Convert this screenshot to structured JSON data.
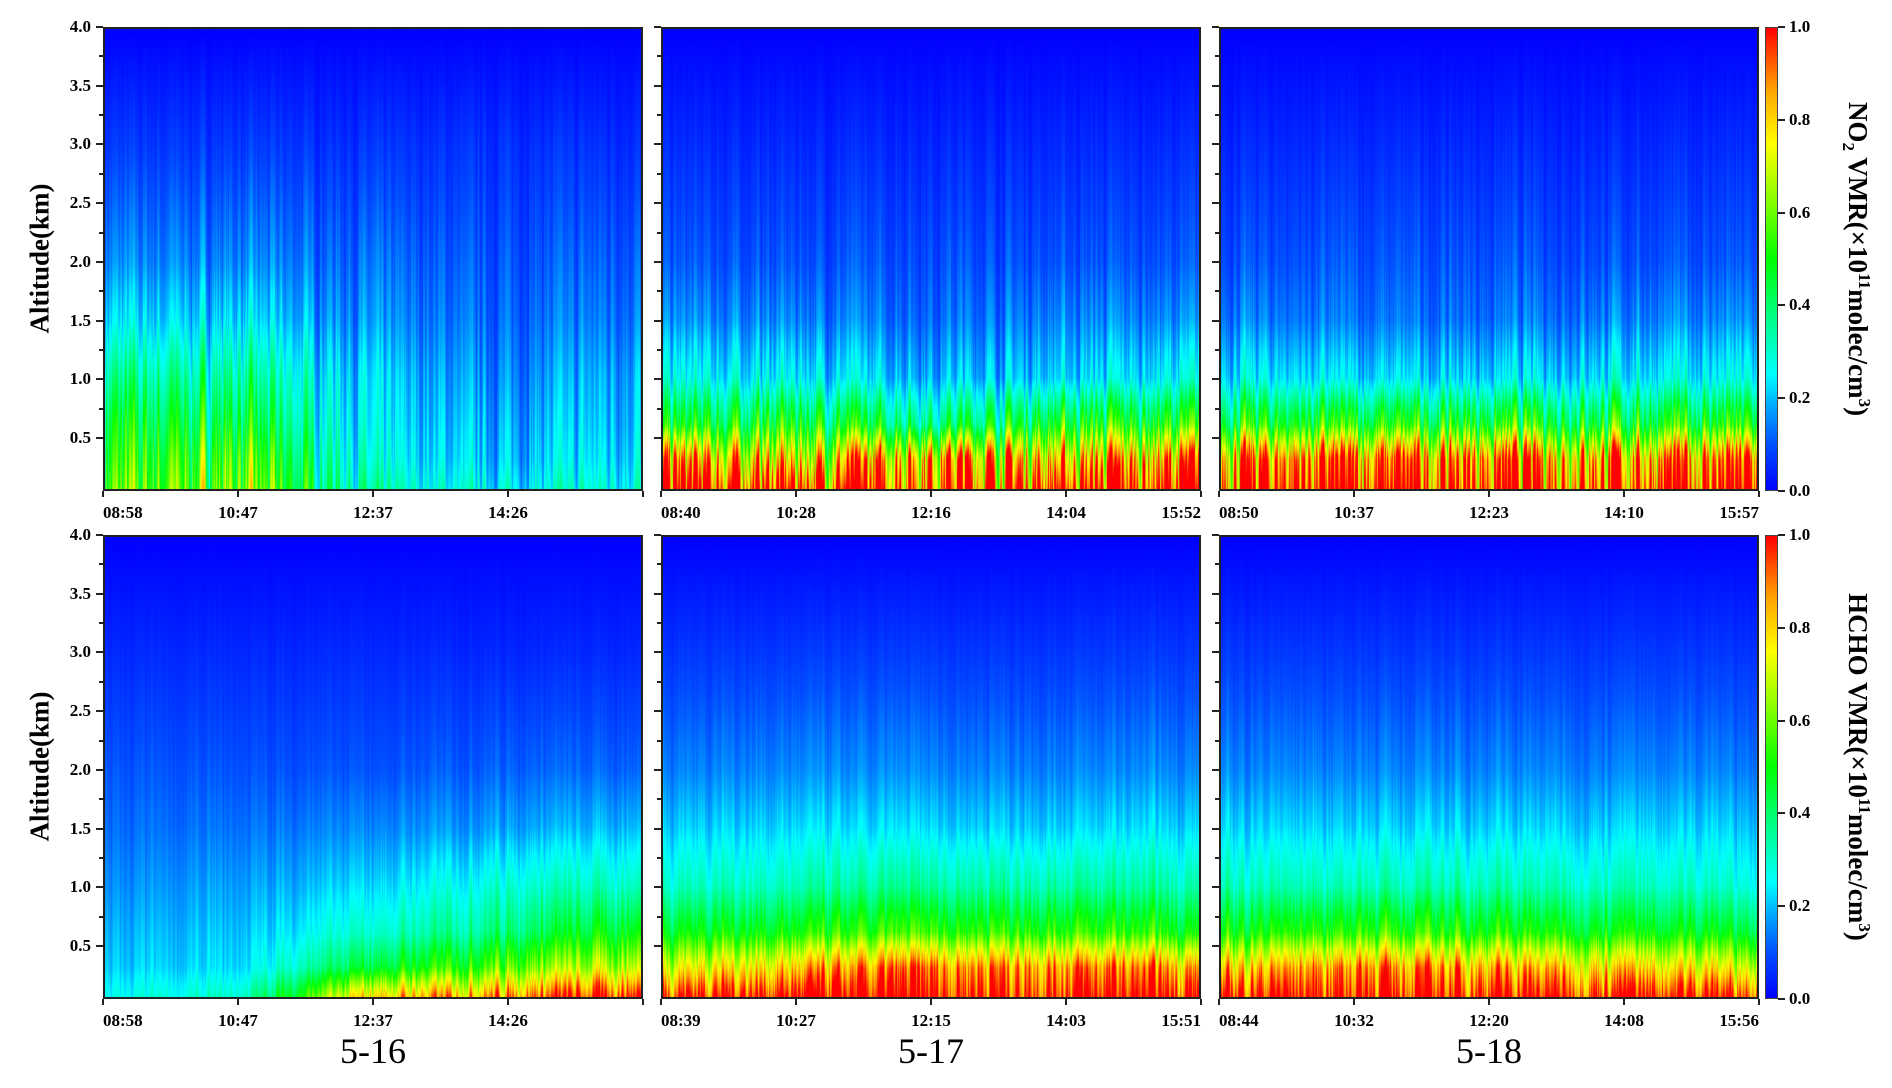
{
  "colorbars": [
    {
      "pre": "NO",
      "sub": "2",
      "mid": " VMR(×10",
      "sup": "11",
      "post": "molec/cm",
      "sup2": "3",
      "end": ")",
      "ticks": [
        "0.0",
        "0.2",
        "0.4",
        "0.6",
        "0.8",
        "1.0"
      ],
      "range": [
        0,
        1
      ]
    },
    {
      "pre": "HCHO",
      "sub": "",
      "mid": " VMR(×10",
      "sup": "11",
      "post": "molec/cm",
      "sup2": "3",
      "end": ")",
      "ticks": [
        "0.0",
        "0.2",
        "0.4",
        "0.6",
        "0.8",
        "1.0"
      ],
      "range": [
        0,
        1
      ]
    }
  ],
  "colormap": [
    "#0000ff",
    "#00a8ff",
    "#00ffff",
    "#00ff00",
    "#ffff00",
    "#ffa000",
    "#ff0000"
  ],
  "ylabel": "Altitude(km)",
  "yticks": [
    "0.5",
    "1.0",
    "1.5",
    "2.0",
    "2.5",
    "3.0",
    "3.5",
    "4.0"
  ],
  "days": [
    "5-16",
    "5-17",
    "5-18"
  ],
  "chart_data": [
    {
      "type": "heatmap",
      "species": "NO2",
      "day": "5-16",
      "ylim": [
        0.05,
        4
      ],
      "xticks": [
        "08:58",
        "10:47",
        "12:37",
        "14:26",
        ""
      ],
      "altitudes": [
        0.05,
        0.3,
        0.6,
        1.0,
        1.5,
        2.0,
        3.0,
        4.0
      ],
      "values": [
        [
          0.55,
          0.6,
          0.3,
          0.25,
          0.3
        ],
        [
          0.5,
          0.55,
          0.25,
          0.2,
          0.25
        ],
        [
          0.45,
          0.45,
          0.22,
          0.18,
          0.22
        ],
        [
          0.35,
          0.35,
          0.2,
          0.15,
          0.2
        ],
        [
          0.22,
          0.22,
          0.15,
          0.12,
          0.15
        ],
        [
          0.15,
          0.15,
          0.12,
          0.1,
          0.12
        ],
        [
          0.07,
          0.07,
          0.06,
          0.06,
          0.06
        ],
        [
          0.0,
          0.0,
          0.0,
          0.0,
          0.0
        ]
      ]
    },
    {
      "type": "heatmap",
      "species": "NO2",
      "day": "5-17",
      "ylim": [
        0.05,
        4
      ],
      "xticks": [
        "08:40",
        "10:28",
        "12:16",
        "14:04",
        "15:52"
      ],
      "altitudes": [
        0.05,
        0.3,
        0.6,
        1.0,
        1.5,
        2.0,
        3.0,
        4.0
      ],
      "values": [
        [
          1.0,
          1.0,
          1.0,
          1.0,
          1.0
        ],
        [
          0.85,
          0.75,
          0.9,
          0.8,
          0.85
        ],
        [
          0.45,
          0.5,
          0.4,
          0.5,
          0.5
        ],
        [
          0.25,
          0.25,
          0.2,
          0.22,
          0.25
        ],
        [
          0.15,
          0.15,
          0.13,
          0.15,
          0.15
        ],
        [
          0.1,
          0.1,
          0.1,
          0.1,
          0.1
        ],
        [
          0.05,
          0.05,
          0.05,
          0.05,
          0.05
        ],
        [
          0.0,
          0.0,
          0.0,
          0.0,
          0.0
        ]
      ]
    },
    {
      "type": "heatmap",
      "species": "NO2",
      "day": "5-18",
      "ylim": [
        0.05,
        4
      ],
      "xticks": [
        "08:50",
        "10:37",
        "12:23",
        "14:10",
        "15:57"
      ],
      "altitudes": [
        0.05,
        0.3,
        0.6,
        1.0,
        1.5,
        2.0,
        3.0,
        4.0
      ],
      "values": [
        [
          1.0,
          1.0,
          1.0,
          1.0,
          1.0
        ],
        [
          0.9,
          0.9,
          0.9,
          0.88,
          0.9
        ],
        [
          0.5,
          0.5,
          0.5,
          0.5,
          0.5
        ],
        [
          0.25,
          0.22,
          0.22,
          0.25,
          0.25
        ],
        [
          0.15,
          0.13,
          0.13,
          0.15,
          0.15
        ],
        [
          0.1,
          0.1,
          0.1,
          0.1,
          0.1
        ],
        [
          0.05,
          0.05,
          0.05,
          0.05,
          0.05
        ],
        [
          0.0,
          0.0,
          0.0,
          0.0,
          0.0
        ]
      ]
    },
    {
      "type": "heatmap",
      "species": "HCHO",
      "day": "5-16",
      "ylim": [
        0.05,
        4
      ],
      "xticks": [
        "08:58",
        "10:47",
        "12:37",
        "14:26",
        ""
      ],
      "altitudes": [
        0.05,
        0.3,
        0.6,
        1.0,
        1.5,
        2.0,
        3.0,
        4.0
      ],
      "values": [
        [
          0.25,
          0.3,
          0.8,
          0.9,
          1.0
        ],
        [
          0.2,
          0.22,
          0.45,
          0.6,
          0.7
        ],
        [
          0.18,
          0.2,
          0.3,
          0.4,
          0.5
        ],
        [
          0.15,
          0.17,
          0.22,
          0.3,
          0.32
        ],
        [
          0.12,
          0.13,
          0.15,
          0.18,
          0.2
        ],
        [
          0.1,
          0.1,
          0.1,
          0.12,
          0.12
        ],
        [
          0.05,
          0.05,
          0.05,
          0.05,
          0.05
        ],
        [
          0.0,
          0.0,
          0.0,
          0.0,
          0.0
        ]
      ]
    },
    {
      "type": "heatmap",
      "species": "HCHO",
      "day": "5-17",
      "ylim": [
        0.05,
        4
      ],
      "xticks": [
        "08:39",
        "10:27",
        "12:15",
        "14:03",
        "15:51"
      ],
      "altitudes": [
        0.05,
        0.3,
        0.6,
        1.0,
        1.5,
        2.0,
        3.0,
        4.0
      ],
      "values": [
        [
          1.0,
          1.0,
          1.0,
          1.0,
          1.0
        ],
        [
          0.75,
          0.8,
          0.9,
          0.9,
          0.85
        ],
        [
          0.5,
          0.5,
          0.55,
          0.55,
          0.5
        ],
        [
          0.32,
          0.32,
          0.35,
          0.35,
          0.33
        ],
        [
          0.22,
          0.22,
          0.22,
          0.22,
          0.22
        ],
        [
          0.15,
          0.15,
          0.15,
          0.15,
          0.15
        ],
        [
          0.07,
          0.07,
          0.07,
          0.07,
          0.07
        ],
        [
          0.0,
          0.0,
          0.0,
          0.0,
          0.0
        ]
      ]
    },
    {
      "type": "heatmap",
      "species": "HCHO",
      "day": "5-18",
      "ylim": [
        0.05,
        4
      ],
      "xticks": [
        "08:44",
        "10:32",
        "12:20",
        "14:08",
        "15:56"
      ],
      "altitudes": [
        0.05,
        0.3,
        0.6,
        1.0,
        1.5,
        2.0,
        3.0,
        4.0
      ],
      "values": [
        [
          1.0,
          1.0,
          1.0,
          1.0,
          1.0
        ],
        [
          0.8,
          0.9,
          0.85,
          0.8,
          0.75
        ],
        [
          0.5,
          0.55,
          0.52,
          0.5,
          0.48
        ],
        [
          0.32,
          0.33,
          0.33,
          0.32,
          0.3
        ],
        [
          0.22,
          0.22,
          0.22,
          0.22,
          0.22
        ],
        [
          0.15,
          0.15,
          0.15,
          0.15,
          0.15
        ],
        [
          0.07,
          0.07,
          0.07,
          0.07,
          0.07
        ],
        [
          0.0,
          0.0,
          0.0,
          0.0,
          0.0
        ]
      ]
    }
  ]
}
